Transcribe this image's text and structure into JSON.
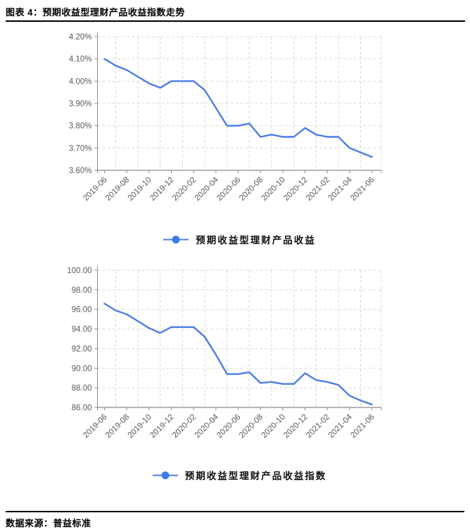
{
  "header": {
    "title": "图表 4：预期收益型理财产品收益指数走势"
  },
  "footer": {
    "source": "数据来源：普益标准"
  },
  "palette": {
    "line": "#4d7de3",
    "marker": "#3d7be8",
    "grid": "#d9d9d9",
    "axis": "#8c8c8c",
    "tick_label": "#595959"
  },
  "chart_data": [
    {
      "type": "line",
      "title": "",
      "xlabel": "",
      "ylabel": "",
      "categories": [
        "2019-06",
        "2019-07",
        "2019-08",
        "2019-09",
        "2019-10",
        "2019-11",
        "2019-12",
        "2020-01",
        "2020-02",
        "2020-03",
        "2020-04",
        "2020-05",
        "2020-06",
        "2020-07",
        "2020-08",
        "2020-09",
        "2020-10",
        "2020-11",
        "2020-12",
        "2021-01",
        "2021-02",
        "2021-03",
        "2021-04",
        "2021-05",
        "2021-06"
      ],
      "x_tick_every": 2,
      "series": [
        {
          "name": "预期收益型理财产品收益",
          "values": [
            4.1,
            4.07,
            4.05,
            4.02,
            3.99,
            3.97,
            4.0,
            4.0,
            4.0,
            3.96,
            3.88,
            3.8,
            3.8,
            3.81,
            3.75,
            3.76,
            3.75,
            3.75,
            3.79,
            3.76,
            3.75,
            3.75,
            3.7,
            3.68,
            3.66
          ]
        }
      ],
      "ylim": [
        3.6,
        4.2
      ],
      "y_ticks": [
        "4.20%",
        "4.10%",
        "4.00%",
        "3.90%",
        "3.80%",
        "3.70%",
        "3.60%"
      ],
      "grid": true,
      "legend_position": "bottom"
    },
    {
      "type": "line",
      "title": "",
      "xlabel": "",
      "ylabel": "",
      "categories": [
        "2019-06",
        "2019-07",
        "2019-08",
        "2019-09",
        "2019-10",
        "2019-11",
        "2019-12",
        "2020-01",
        "2020-02",
        "2020-03",
        "2020-04",
        "2020-05",
        "2020-06",
        "2020-07",
        "2020-08",
        "2020-09",
        "2020-10",
        "2020-11",
        "2020-12",
        "2021-01",
        "2021-02",
        "2021-03",
        "2021-04",
        "2021-05",
        "2021-06"
      ],
      "x_tick_every": 2,
      "series": [
        {
          "name": "预期收益型理财产品收益指数",
          "values": [
            96.6,
            95.9,
            95.5,
            94.8,
            94.1,
            93.6,
            94.2,
            94.2,
            94.2,
            93.2,
            91.4,
            89.4,
            89.4,
            89.6,
            88.5,
            88.6,
            88.4,
            88.4,
            89.5,
            88.8,
            88.6,
            88.3,
            87.2,
            86.7,
            86.3
          ]
        }
      ],
      "ylim": [
        86.0,
        100.0
      ],
      "y_ticks": [
        "100.00",
        "98.00",
        "96.00",
        "94.00",
        "92.00",
        "90.00",
        "88.00",
        "86.00"
      ],
      "grid": true,
      "legend_position": "bottom"
    }
  ]
}
